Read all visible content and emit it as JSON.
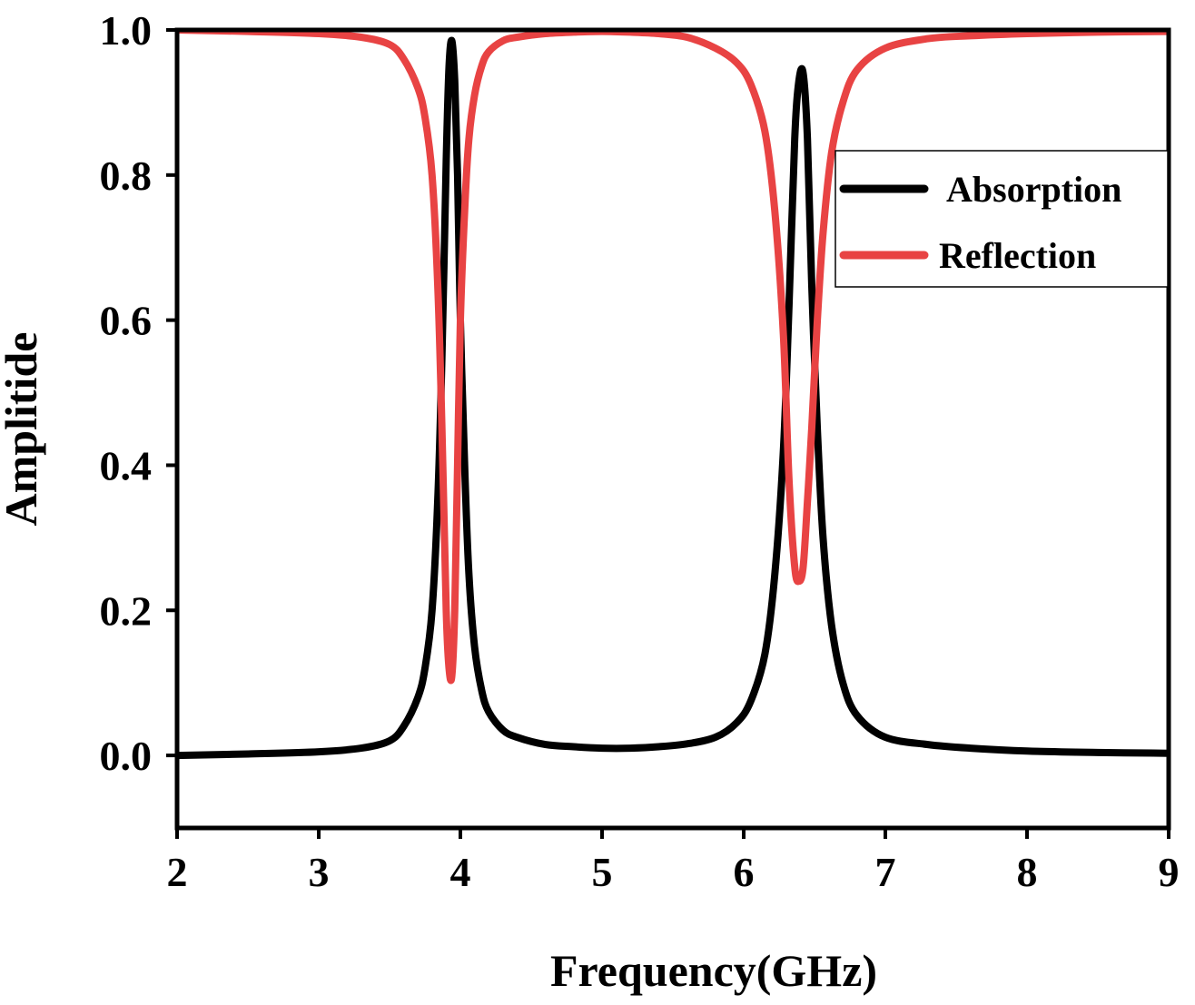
{
  "chart_data": {
    "type": "line",
    "title": "",
    "xlabel": "Frequency(GHz)",
    "ylabel": "Amplitide",
    "xlim": [
      2,
      9
    ],
    "ylim": [
      -0.1,
      1.0
    ],
    "xticks": [
      "2",
      "3",
      "4",
      "5",
      "6",
      "7",
      "8",
      "9"
    ],
    "yticks": [
      "0.0",
      "0.2",
      "0.4",
      "0.6",
      "0.8",
      "1.0"
    ],
    "grid": false,
    "legend_position": "right",
    "series": [
      {
        "name": "Absorption",
        "color": "#000000",
        "x": [
          2.0,
          2.5,
          3.0,
          3.3,
          3.5,
          3.6,
          3.7,
          3.75,
          3.8,
          3.84,
          3.87,
          3.9,
          3.92,
          3.94,
          3.96,
          3.98,
          4.0,
          4.03,
          4.06,
          4.1,
          4.15,
          4.2,
          4.3,
          4.4,
          4.6,
          4.8,
          5.0,
          5.2,
          5.4,
          5.6,
          5.8,
          5.95,
          6.05,
          6.15,
          6.22,
          6.28,
          6.32,
          6.36,
          6.39,
          6.42,
          6.45,
          6.48,
          6.52,
          6.56,
          6.62,
          6.7,
          6.8,
          7.0,
          7.3,
          7.6,
          8.0,
          8.5,
          9.0
        ],
        "y": [
          0.0,
          0.002,
          0.005,
          0.01,
          0.02,
          0.04,
          0.08,
          0.12,
          0.2,
          0.35,
          0.55,
          0.82,
          0.95,
          0.985,
          0.93,
          0.8,
          0.6,
          0.4,
          0.25,
          0.15,
          0.09,
          0.06,
          0.035,
          0.025,
          0.015,
          0.012,
          0.01,
          0.01,
          0.012,
          0.016,
          0.025,
          0.045,
          0.075,
          0.14,
          0.25,
          0.42,
          0.62,
          0.85,
          0.93,
          0.94,
          0.85,
          0.65,
          0.45,
          0.3,
          0.18,
          0.1,
          0.055,
          0.025,
          0.015,
          0.01,
          0.006,
          0.004,
          0.003
        ]
      },
      {
        "name": "Reflection",
        "color": "#e84343",
        "x": [
          2.0,
          2.5,
          3.0,
          3.3,
          3.5,
          3.6,
          3.7,
          3.75,
          3.8,
          3.84,
          3.87,
          3.9,
          3.92,
          3.94,
          3.96,
          3.98,
          4.0,
          4.03,
          4.06,
          4.1,
          4.15,
          4.2,
          4.3,
          4.4,
          4.6,
          4.8,
          5.0,
          5.2,
          5.4,
          5.6,
          5.8,
          5.95,
          6.05,
          6.15,
          6.22,
          6.28,
          6.32,
          6.36,
          6.39,
          6.42,
          6.45,
          6.48,
          6.52,
          6.56,
          6.62,
          6.7,
          6.8,
          7.0,
          7.3,
          7.6,
          8.0,
          8.5,
          9.0
        ],
        "y": [
          1.0,
          0.998,
          0.995,
          0.99,
          0.98,
          0.96,
          0.92,
          0.88,
          0.8,
          0.65,
          0.45,
          0.2,
          0.12,
          0.11,
          0.2,
          0.4,
          0.6,
          0.75,
          0.85,
          0.91,
          0.95,
          0.97,
          0.985,
          0.99,
          0.995,
          0.997,
          0.998,
          0.997,
          0.995,
          0.99,
          0.975,
          0.955,
          0.925,
          0.86,
          0.75,
          0.58,
          0.38,
          0.26,
          0.24,
          0.26,
          0.35,
          0.45,
          0.6,
          0.72,
          0.83,
          0.9,
          0.945,
          0.975,
          0.988,
          0.992,
          0.995,
          0.997,
          0.998
        ]
      }
    ]
  }
}
